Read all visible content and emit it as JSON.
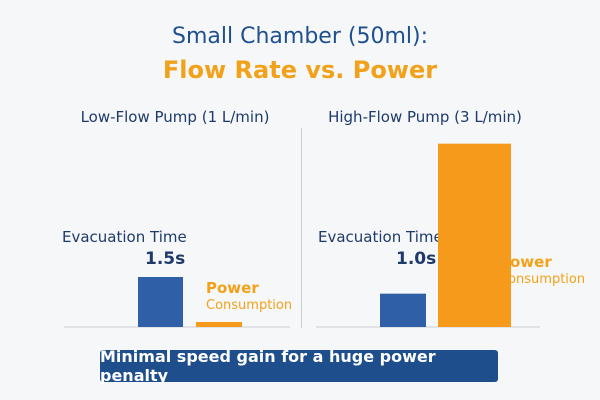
{
  "title": {
    "line1": "Small Chamber (50ml):",
    "line2": "Flow Rate vs. Power"
  },
  "colors": {
    "time_bar": "#2f5fa6",
    "power_bar": "#f59a1b",
    "banner": "#1f4e8c"
  },
  "labels": {
    "evacuation_time": "Evacuation Time",
    "power_consumption_1": "Power",
    "power_consumption_2": "Consumption"
  },
  "chart_data": [
    {
      "type": "bar",
      "title": "Low-Flow Pump (1 L/min)",
      "categories": [
        "Evacuation Time",
        "Power Consumption"
      ],
      "series": [
        {
          "name": "Evacuation Time",
          "values": [
            1.5,
            null
          ]
        },
        {
          "name": "Power Consumption",
          "values": [
            null,
            0.15
          ]
        }
      ],
      "annotations": {
        "evacuation_time_label": "1.5s"
      },
      "ylim": [
        0,
        6
      ],
      "grid": false
    },
    {
      "type": "bar",
      "title": "High-Flow Pump (3 L/min)",
      "categories": [
        "Evacuation Time",
        "Power Consumption"
      ],
      "series": [
        {
          "name": "Evacuation Time",
          "values": [
            1.0,
            null
          ]
        },
        {
          "name": "Power Consumption",
          "values": [
            null,
            5.5
          ]
        }
      ],
      "annotations": {
        "evacuation_time_label": "1.0s"
      },
      "ylim": [
        0,
        6
      ],
      "grid": false
    }
  ],
  "banner": {
    "text": "Minimal speed gain for a huge power penalty"
  }
}
